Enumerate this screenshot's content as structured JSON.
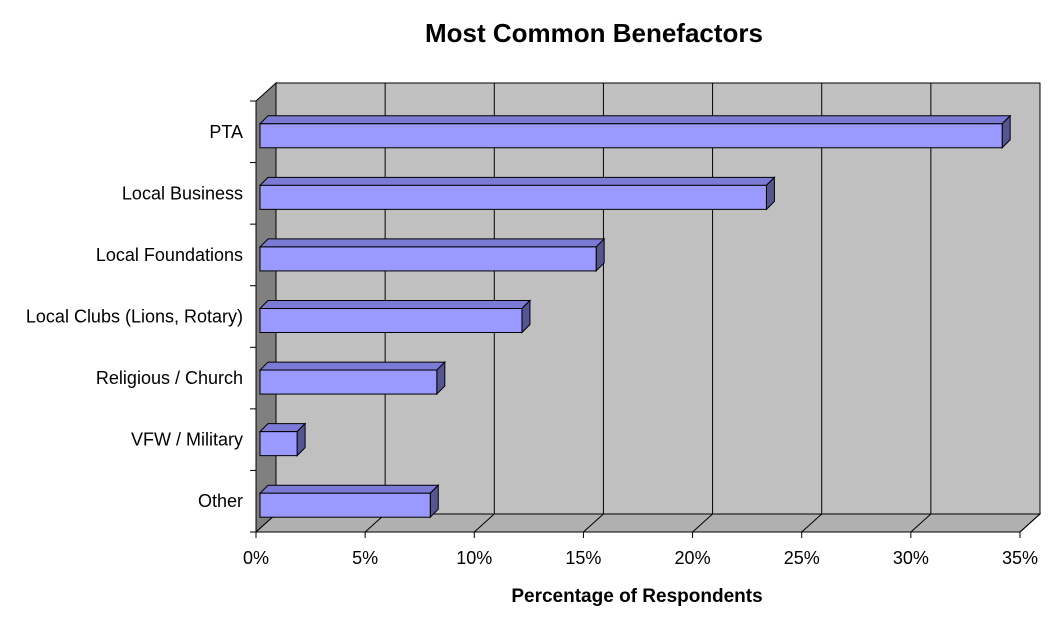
{
  "chart_data": {
    "type": "bar",
    "orientation": "horizontal",
    "title": "Most Common Benefactors",
    "xlabel": "Percentage of Respondents",
    "ylabel": "",
    "categories": [
      "PTA",
      "Local Business",
      "Local Foundations",
      "Local Clubs (Lions, Rotary)",
      "Religious / Church",
      "VFW / Military",
      "Other"
    ],
    "values": [
      34,
      23.2,
      15.4,
      12,
      8.1,
      1.7,
      7.8
    ],
    "xlim": [
      0,
      35
    ],
    "ticks": [
      0,
      5,
      10,
      15,
      20,
      25,
      30,
      35
    ],
    "tick_labels": [
      "0%",
      "5%",
      "10%",
      "15%",
      "20%",
      "25%",
      "30%",
      "35%"
    ],
    "grid": true,
    "legend": "none",
    "three_d": true,
    "colors": {
      "bar_front": "#9999ff",
      "bar_top": "#7b7bd6",
      "bar_side": "#555590",
      "plot_wall": "#c0c0c0",
      "side_wall": "#808080"
    }
  }
}
